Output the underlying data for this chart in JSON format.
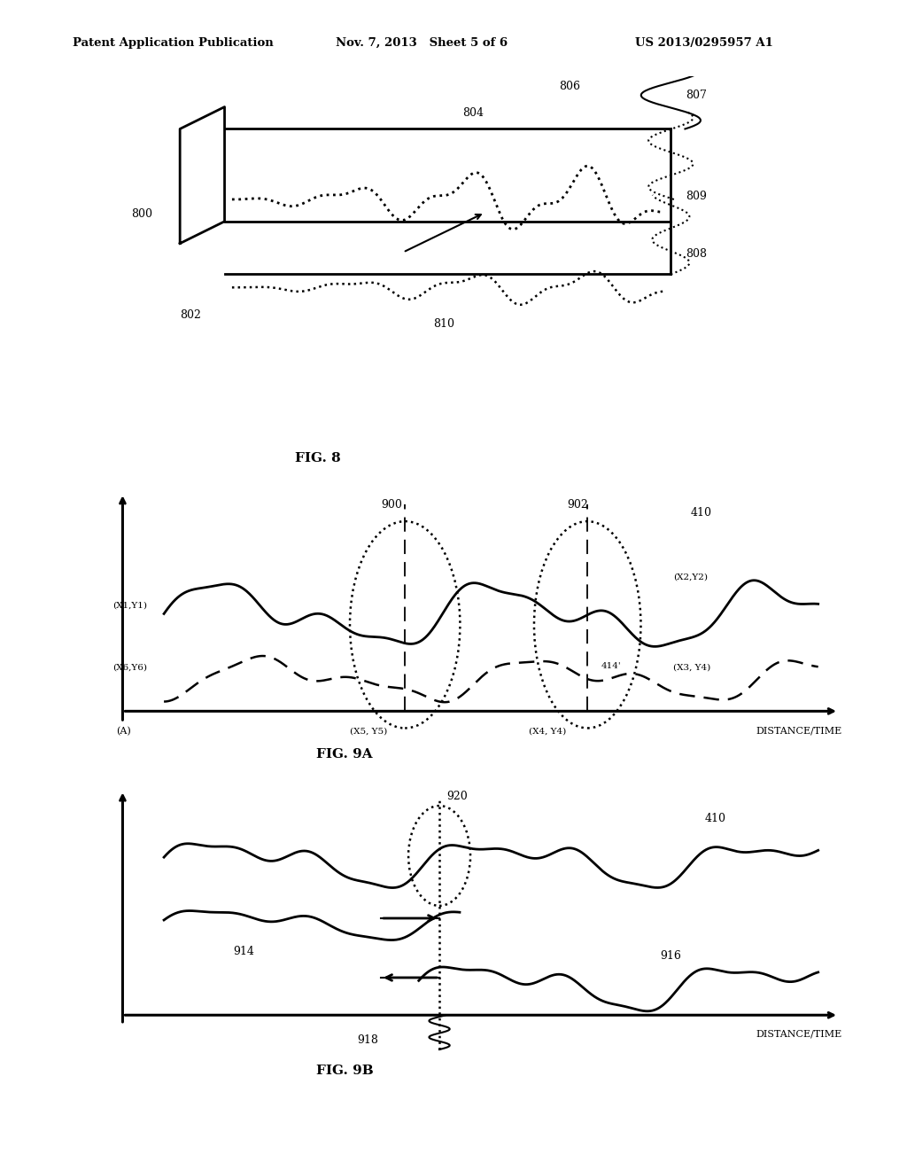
{
  "header_left": "Patent Application Publication",
  "header_mid": "Nov. 7, 2013   Sheet 5 of 6",
  "header_right": "US 2013/0295957 A1",
  "fig8_label": "FIG. 8",
  "fig9a_label": "FIG. 9A",
  "fig9b_label": "FIG. 9B",
  "bg_color": "#ffffff",
  "line_color": "#000000"
}
